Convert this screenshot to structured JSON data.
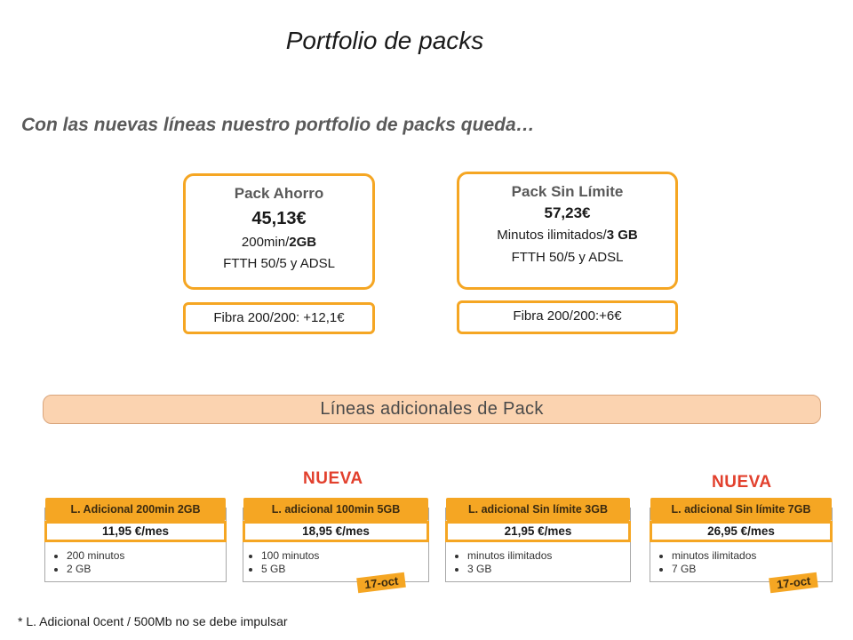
{
  "title": "Portfolio de packs",
  "subtitle": "Con las nuevas líneas nuestro portfolio de packs queda…",
  "packs": [
    {
      "name": "Pack Ahorro",
      "price": "45,13€",
      "line1_a": "200min/",
      "line1_b": "2GB",
      "line2": "FTTH 50/5 y ADSL",
      "fibra": "Fibra 200/200: +12,1€"
    },
    {
      "name": "Pack Sin Límite",
      "price": "57,23€",
      "line1_a": "Minutos ilimitados/",
      "line1_b": "3 GB",
      "line2": "FTTH 50/5 y ADSL",
      "fibra": "Fibra 200/200:+6€"
    }
  ],
  "lineas_banner": "Líneas adicionales de Pack",
  "nueva_label": "NUEVA",
  "stamp_label": "17-oct",
  "cards": [
    {
      "header": "L. Adicional 200min 2GB",
      "price": "11,95  €/mes",
      "bullets": [
        "200 minutos",
        "2 GB"
      ]
    },
    {
      "header": "L. adicional 100min 5GB",
      "price": "18,95  €/mes",
      "bullets": [
        "100 minutos",
        "5 GB"
      ]
    },
    {
      "header": "L. adicional Sin límite 3GB",
      "price": "21,95  €/mes",
      "bullets": [
        "minutos ilimitados",
        "3 GB"
      ]
    },
    {
      "header": "L. adicional Sin límite 7GB",
      "price": "26,95  €/mes",
      "bullets": [
        "minutos ilimitados",
        "7 GB"
      ]
    }
  ],
  "footnote": "* L. Adicional 0cent / 500Mb no se debe impulsar",
  "colors": {
    "accent": "#f5a623",
    "banner": "#fbd3b0",
    "nueva": "#e2402d"
  }
}
